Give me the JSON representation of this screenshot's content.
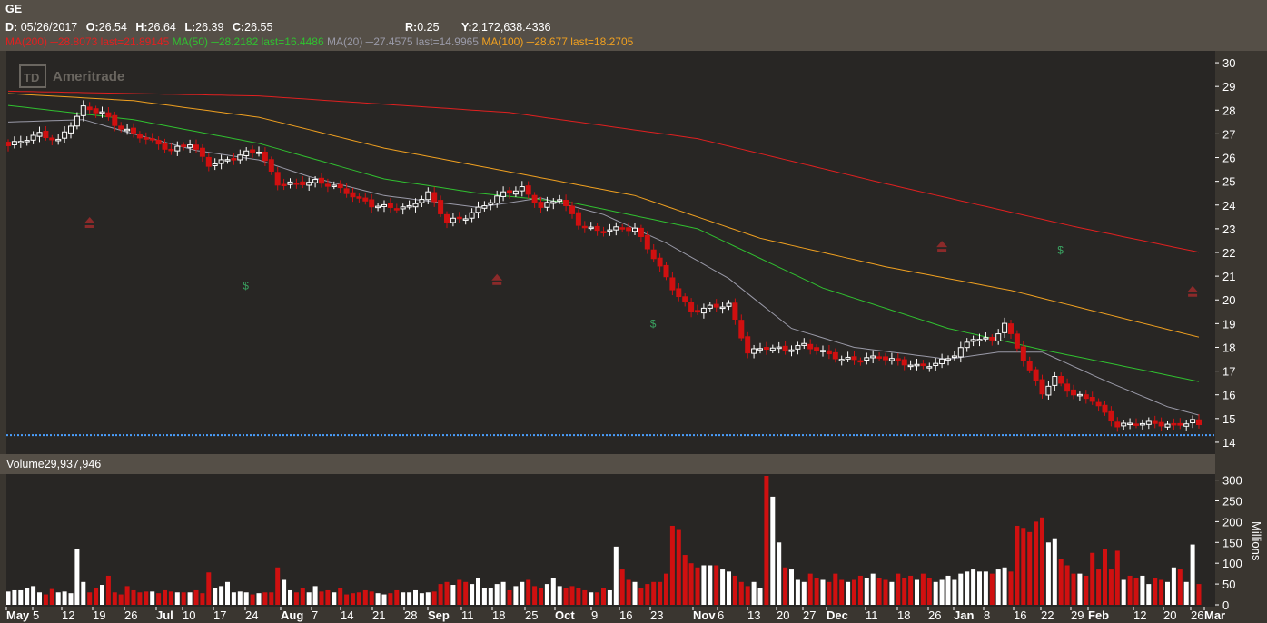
{
  "header": {
    "symbol": "GE",
    "d_label": "D:",
    "date": "05/26/2017",
    "o_label": "O:",
    "open": "26.54",
    "h_label": "H:",
    "high": "26.64",
    "l_label": "L:",
    "low": "26.39",
    "c_label": "C:",
    "close": "26.55",
    "r_label": "R:",
    "range": "0.25",
    "y_label": "Y:",
    "y_value": "2,172,638.4336",
    "studies": [
      {
        "label": "MA(200)",
        "value": "28.8073",
        "last": "last=21.89145",
        "color": "#e02020"
      },
      {
        "label": "MA(50)",
        "value": "28.2182",
        "last": "last=16.4486",
        "color": "#30c030"
      },
      {
        "label": "MA(20)",
        "value": "27.4575",
        "last": "last=14.9965",
        "color": "#9a9aa8"
      },
      {
        "label": "MA(100)",
        "value": "28.677",
        "last": "last=18.2705",
        "color": "#f0a020"
      }
    ]
  },
  "watermark": "Ameritrade",
  "volume_label": "Volume",
  "volume_value": "29,937,946",
  "volume_unit": "Millions",
  "colors": {
    "up": "#ffffff",
    "down": "#d01010",
    "ma200": "#e02020",
    "ma100": "#f0a020",
    "ma50": "#30c030",
    "ma20": "#9a9aa8",
    "last_price_line": "#4aa0ff",
    "event_up": "#8b2a2a",
    "dividend": "#3aa060"
  },
  "chart_data": [
    {
      "type": "candlestick",
      "title": "GE",
      "ylim": [
        13.5,
        30.5
      ],
      "y_ticks": [
        14,
        15,
        16,
        17,
        18,
        19,
        20,
        21,
        22,
        23,
        24,
        25,
        26,
        27,
        28,
        29,
        30
      ],
      "x_labels": [
        {
          "text": "May",
          "bold": true
        },
        {
          "text": "5",
          "bold": false
        },
        {
          "text": "12",
          "bold": false
        },
        {
          "text": "19",
          "bold": false
        },
        {
          "text": "26",
          "bold": false
        },
        {
          "text": "Jul",
          "bold": true
        },
        {
          "text": "10",
          "bold": false
        },
        {
          "text": "17",
          "bold": false
        },
        {
          "text": "24",
          "bold": false
        },
        {
          "text": "Aug",
          "bold": true
        },
        {
          "text": "7",
          "bold": false
        },
        {
          "text": "14",
          "bold": false
        },
        {
          "text": "21",
          "bold": false
        },
        {
          "text": "28",
          "bold": false
        },
        {
          "text": "Sep",
          "bold": true
        },
        {
          "text": "11",
          "bold": false
        },
        {
          "text": "18",
          "bold": false
        },
        {
          "text": "25",
          "bold": false
        },
        {
          "text": "Oct",
          "bold": true
        },
        {
          "text": "9",
          "bold": false
        },
        {
          "text": "16",
          "bold": false
        },
        {
          "text": "23",
          "bold": false
        },
        {
          "text": "Nov",
          "bold": true
        },
        {
          "text": "6",
          "bold": false
        },
        {
          "text": "13",
          "bold": false
        },
        {
          "text": "20",
          "bold": false
        },
        {
          "text": "27",
          "bold": false
        },
        {
          "text": "Dec",
          "bold": true
        },
        {
          "text": "11",
          "bold": false
        },
        {
          "text": "18",
          "bold": false
        },
        {
          "text": "26",
          "bold": false
        },
        {
          "text": "Jan",
          "bold": true
        },
        {
          "text": "8",
          "bold": false
        },
        {
          "text": "16",
          "bold": false
        },
        {
          "text": "22",
          "bold": false
        },
        {
          "text": "29",
          "bold": false
        },
        {
          "text": "Feb",
          "bold": true
        },
        {
          "text": "12",
          "bold": false
        },
        {
          "text": "20",
          "bold": false
        },
        {
          "text": "26",
          "bold": false
        },
        {
          "text": "Mar",
          "bold": true
        }
      ],
      "close_points": [
        [
          0,
          26.5
        ],
        [
          3,
          26.8
        ],
        [
          5,
          27.0
        ],
        [
          8,
          26.7
        ],
        [
          12,
          28.1
        ],
        [
          15,
          27.9
        ],
        [
          17,
          27.4
        ],
        [
          20,
          27.0
        ],
        [
          23,
          26.7
        ],
        [
          26,
          26.3
        ],
        [
          29,
          26.6
        ],
        [
          32,
          25.7
        ],
        [
          35,
          25.9
        ],
        [
          38,
          26.2
        ],
        [
          40,
          26.3
        ],
        [
          43,
          24.9
        ],
        [
          46,
          24.9
        ],
        [
          49,
          25.0
        ],
        [
          52,
          24.8
        ],
        [
          55,
          24.4
        ],
        [
          58,
          24.0
        ],
        [
          61,
          23.9
        ],
        [
          64,
          23.9
        ],
        [
          67,
          24.5
        ],
        [
          70,
          23.3
        ],
        [
          73,
          23.5
        ],
        [
          76,
          24.0
        ],
        [
          79,
          24.5
        ],
        [
          82,
          24.7
        ],
        [
          85,
          23.9
        ],
        [
          88,
          24.3
        ],
        [
          91,
          23.2
        ],
        [
          94,
          22.9
        ],
        [
          97,
          23.0
        ],
        [
          100,
          23.0
        ],
        [
          103,
          21.8
        ],
        [
          106,
          20.5
        ],
        [
          109,
          19.5
        ],
        [
          112,
          19.7
        ],
        [
          115,
          19.8
        ],
        [
          118,
          17.8
        ],
        [
          121,
          18.0
        ],
        [
          124,
          17.9
        ],
        [
          127,
          18.1
        ],
        [
          130,
          17.8
        ],
        [
          133,
          17.5
        ],
        [
          136,
          17.5
        ],
        [
          139,
          17.6
        ],
        [
          142,
          17.4
        ],
        [
          145,
          17.2
        ],
        [
          148,
          17.3
        ],
        [
          151,
          17.7
        ],
        [
          154,
          18.4
        ],
        [
          157,
          18.3
        ],
        [
          159,
          19.0
        ],
        [
          161,
          18.0
        ],
        [
          163,
          17.0
        ],
        [
          165,
          16.1
        ],
        [
          167,
          16.7
        ],
        [
          170,
          16.0
        ],
        [
          173,
          15.8
        ],
        [
          175,
          15.2
        ],
        [
          177,
          14.7
        ],
        [
          180,
          14.8
        ],
        [
          183,
          14.8
        ],
        [
          186,
          14.7
        ],
        [
          189,
          14.9
        ],
        [
          191,
          14.5
        ],
        [
          192,
          14.4
        ]
      ],
      "ma200_points": [
        [
          0,
          28.8
        ],
        [
          40,
          28.6
        ],
        [
          80,
          27.9
        ],
        [
          110,
          26.8
        ],
        [
          140,
          24.9
        ],
        [
          170,
          23.1
        ],
        [
          192,
          21.9
        ]
      ],
      "ma100_points": [
        [
          0,
          28.7
        ],
        [
          20,
          28.4
        ],
        [
          40,
          27.7
        ],
        [
          60,
          26.4
        ],
        [
          80,
          25.4
        ],
        [
          100,
          24.4
        ],
        [
          120,
          22.6
        ],
        [
          140,
          21.4
        ],
        [
          160,
          20.4
        ],
        [
          192,
          18.3
        ]
      ],
      "ma50_points": [
        [
          0,
          28.2
        ],
        [
          20,
          27.6
        ],
        [
          40,
          26.6
        ],
        [
          60,
          25.1
        ],
        [
          75,
          24.5
        ],
        [
          90,
          24.1
        ],
        [
          110,
          23.0
        ],
        [
          130,
          20.5
        ],
        [
          150,
          18.8
        ],
        [
          165,
          17.9
        ],
        [
          180,
          17.1
        ],
        [
          192,
          16.45
        ]
      ],
      "ma20_points": [
        [
          0,
          27.5
        ],
        [
          12,
          27.6
        ],
        [
          20,
          27.0
        ],
        [
          30,
          26.3
        ],
        [
          40,
          25.9
        ],
        [
          48,
          25.2
        ],
        [
          60,
          24.4
        ],
        [
          75,
          23.9
        ],
        [
          85,
          24.3
        ],
        [
          95,
          23.6
        ],
        [
          105,
          22.4
        ],
        [
          115,
          20.9
        ],
        [
          125,
          18.8
        ],
        [
          135,
          18.0
        ],
        [
          150,
          17.5
        ],
        [
          158,
          17.8
        ],
        [
          165,
          17.8
        ],
        [
          175,
          16.6
        ],
        [
          185,
          15.5
        ],
        [
          192,
          15.0
        ]
      ],
      "last_price": 14.3,
      "events_up": [
        [
          13,
          23.3
        ],
        [
          78,
          20.9
        ],
        [
          149,
          22.3
        ],
        [
          189,
          20.4
        ]
      ],
      "dividends": [
        [
          38,
          20.6
        ],
        [
          103,
          19.0
        ],
        [
          168,
          22.1
        ]
      ]
    },
    {
      "type": "bar",
      "title": "Volume",
      "ylabel": "Millions",
      "ylim": [
        0,
        310
      ],
      "y_ticks": [
        0,
        50,
        100,
        150,
        200,
        250,
        300
      ],
      "values": [
        32,
        35,
        35,
        40,
        45,
        30,
        25,
        38,
        30,
        32,
        28,
        135,
        55,
        30,
        40,
        48,
        70,
        30,
        25,
        45,
        35,
        30,
        32,
        32,
        28,
        35,
        32,
        30,
        30,
        30,
        35,
        28,
        78,
        40,
        45,
        55,
        30,
        32,
        30,
        25,
        28,
        30,
        30,
        90,
        60,
        35,
        30,
        40,
        30,
        45,
        32,
        35,
        30,
        40,
        25,
        28,
        30,
        35,
        32,
        28,
        25,
        28,
        35,
        30,
        30,
        35,
        28,
        30,
        32,
        50,
        55,
        48,
        60,
        55,
        50,
        65,
        40,
        40,
        50,
        55,
        35,
        45,
        55,
        60,
        45,
        40,
        50,
        65,
        45,
        40,
        45,
        40,
        35,
        30,
        30,
        40,
        35,
        140,
        85,
        60,
        55,
        40,
        50,
        55,
        55,
        75,
        190,
        180,
        120,
        100,
        90,
        95,
        95,
        95,
        85,
        80,
        70,
        55,
        45,
        55,
        40,
        310,
        260,
        150,
        90,
        85,
        60,
        55,
        75,
        65,
        60,
        55,
        75,
        60,
        55,
        60,
        70,
        65,
        75,
        65,
        60,
        55,
        75,
        65,
        70,
        60,
        75,
        65,
        55,
        60,
        70,
        60,
        75,
        80,
        85,
        80,
        80,
        75,
        85,
        90,
        80,
        190,
        185,
        175,
        200,
        210,
        150,
        160,
        110,
        95,
        75,
        75,
        70,
        125,
        85,
        135,
        85,
        130,
        60,
        70,
        65,
        70,
        50,
        65,
        60,
        55,
        90,
        85,
        55,
        145,
        50
      ]
    }
  ]
}
